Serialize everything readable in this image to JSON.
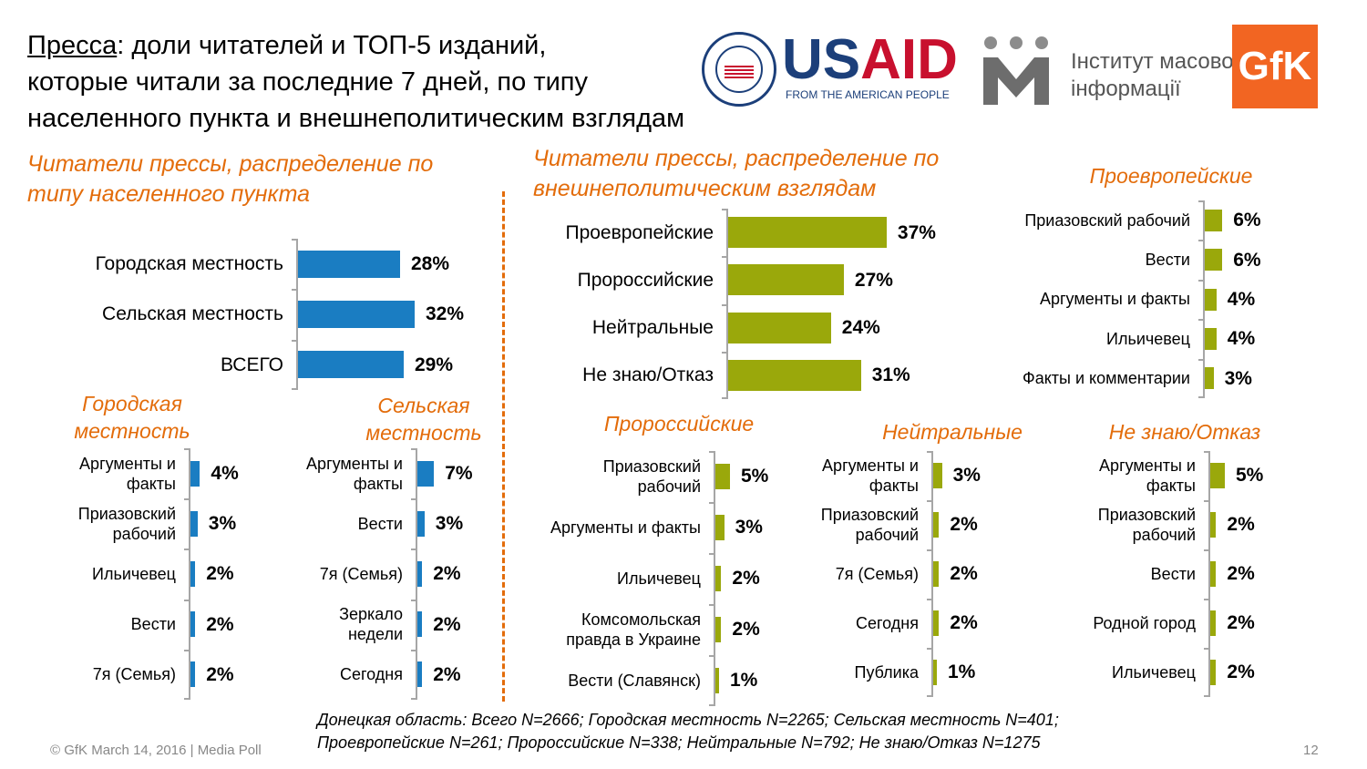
{
  "title": {
    "underlined": "Пресса",
    "rest_line1": ": доли читателей и ТОП-5 изданий,",
    "line2": "которые читали за последние 7 дней, по типу",
    "line3": "населенного пункта и внешнеполитическим взглядам"
  },
  "logos": {
    "usaid_us": "US",
    "usaid_aid": "AID",
    "usaid_sub": "FROM THE AMERICAN PEOPLE",
    "imi_line1": "Інститут масової",
    "imi_line2": "інформації",
    "gfk": "GfK"
  },
  "colors": {
    "blue": "#1a7dc2",
    "olive": "#9aa80b",
    "orange": "#e36c0a"
  },
  "headings": {
    "left_section": [
      "Читатели прессы, распределение по",
      "типу населенного пункта"
    ],
    "right_section": [
      "Читатели прессы, распределение по",
      "внешнеполитическим взглядам"
    ],
    "urban": [
      "Городская",
      "местность"
    ],
    "rural": [
      "Сельская",
      "местность"
    ],
    "proeuropean": "Проевропейские",
    "prorussian": "Пророссийские",
    "neutral": "Нейтральные",
    "dontknow": "Не знаю/Отказ"
  },
  "chart_data": [
    {
      "id": "settlement",
      "type": "bar",
      "orientation": "horizontal",
      "color": "#1a7dc2",
      "max": 40,
      "categories": [
        "Городская местность",
        "Сельская местность",
        "ВСЕГО"
      ],
      "values": [
        28,
        32,
        29
      ],
      "labels": [
        "28%",
        "32%",
        "29%"
      ]
    },
    {
      "id": "views",
      "type": "bar",
      "orientation": "horizontal",
      "color": "#9aa80b",
      "max": 50,
      "categories": [
        "Проевропейские",
        "Пророссийские",
        "Нейтральные",
        "Не знаю/Отказ"
      ],
      "values": [
        37,
        27,
        24,
        31
      ],
      "labels": [
        "37%",
        "27%",
        "24%",
        "31%"
      ]
    },
    {
      "id": "urban",
      "type": "bar",
      "orientation": "horizontal",
      "color": "#1a7dc2",
      "max": 20,
      "categories": [
        "Аргументы и\nфакты",
        "Приазовский\nрабочий",
        "Ильичевец",
        "Вести",
        "7я (Семья)"
      ],
      "values": [
        4,
        3,
        2,
        2,
        2
      ],
      "labels": [
        "4%",
        "3%",
        "2%",
        "2%",
        "2%"
      ]
    },
    {
      "id": "rural",
      "type": "bar",
      "orientation": "horizontal",
      "color": "#1a7dc2",
      "max": 20,
      "categories": [
        "Аргументы и\nфакты",
        "Вести",
        "7я (Семья)",
        "Зеркало\nнедели",
        "Сегодня"
      ],
      "values": [
        7,
        3,
        2,
        2,
        2
      ],
      "labels": [
        "7%",
        "3%",
        "2%",
        "2%",
        "2%"
      ]
    },
    {
      "id": "proeuropean",
      "type": "bar",
      "orientation": "horizontal",
      "color": "#9aa80b",
      "max": 20,
      "categories": [
        "Приазовский рабочий",
        "Вести",
        "Аргументы и факты",
        "Ильичевец",
        "Факты и комментарии"
      ],
      "values": [
        6,
        6,
        4,
        4,
        3
      ],
      "labels": [
        "6%",
        "6%",
        "4%",
        "4%",
        "3%"
      ]
    },
    {
      "id": "prorussian",
      "type": "bar",
      "orientation": "horizontal",
      "color": "#9aa80b",
      "max": 20,
      "categories": [
        "Приазовский\nрабочий",
        "Аргументы и факты",
        "Ильичевец",
        "Комсомольская\nправда в Украине",
        "Вести (Славянск)"
      ],
      "values": [
        5,
        3,
        2,
        2,
        1
      ],
      "labels": [
        "5%",
        "3%",
        "2%",
        "2%",
        "1%"
      ]
    },
    {
      "id": "neutral",
      "type": "bar",
      "orientation": "horizontal",
      "color": "#9aa80b",
      "max": 20,
      "categories": [
        "Аргументы и\nфакты",
        "Приазовский\nрабочий",
        "7я (Семья)",
        "Сегодня",
        "Публика"
      ],
      "values": [
        3,
        2,
        2,
        2,
        1
      ],
      "labels": [
        "3%",
        "2%",
        "2%",
        "2%",
        "1%"
      ]
    },
    {
      "id": "dontknow",
      "type": "bar",
      "orientation": "horizontal",
      "color": "#9aa80b",
      "max": 20,
      "categories": [
        "Аргументы и\nфакты",
        "Приазовский\nрабочий",
        "Вести",
        "Родной город",
        "Ильичевец"
      ],
      "values": [
        5,
        2,
        2,
        2,
        2
      ],
      "labels": [
        "5%",
        "2%",
        "2%",
        "2%",
        "2%"
      ]
    }
  ],
  "footnote": [
    "Донецкая область: Всего N=2666; Городская местность N=2265; Сельская местность N=401;",
    "Проевропейские N=261; Пророссийские N=338; Нейтральные N=792; Не знаю/Отказ N=1275"
  ],
  "copyright": "© GfK March 14, 2016 | Media Poll",
  "page_number": "12"
}
